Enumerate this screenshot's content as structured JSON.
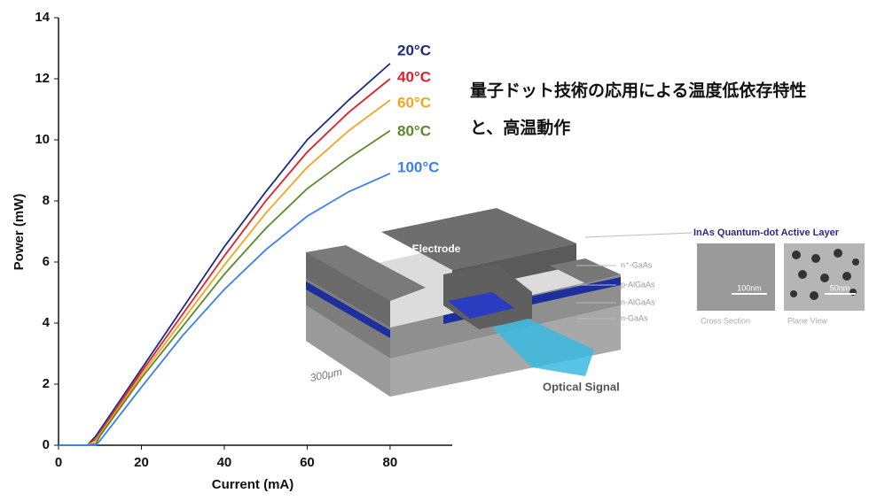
{
  "chart_data": {
    "type": "line",
    "x_label": "Current (mA)",
    "y_label": "Power (mW)",
    "x": [
      0,
      7,
      9,
      10,
      20,
      30,
      40,
      50,
      60,
      70,
      80
    ],
    "series": [
      {
        "name": "20°C",
        "color": "#1c2a80",
        "values": [
          0,
          0,
          0.3,
          0.5,
          2.5,
          4.5,
          6.5,
          8.3,
          10.0,
          11.3,
          12.5
        ]
      },
      {
        "name": "40°C",
        "color": "#e61e2a",
        "values": [
          0,
          0,
          0.2,
          0.4,
          2.4,
          4.3,
          6.2,
          8.0,
          9.6,
          10.9,
          12.0
        ]
      },
      {
        "name": "60°C",
        "color": "#f4a422",
        "values": [
          0,
          0,
          0.15,
          0.35,
          2.3,
          4.1,
          5.9,
          7.6,
          9.1,
          10.3,
          11.3
        ]
      },
      {
        "name": "80°C",
        "color": "#5a8a2a",
        "values": [
          0,
          0,
          0.05,
          0.3,
          2.2,
          3.9,
          5.6,
          7.1,
          8.4,
          9.4,
          10.3
        ]
      },
      {
        "name": "100°C",
        "color": "#3a80f0",
        "values": [
          0,
          0,
          0,
          0.15,
          1.9,
          3.6,
          5.1,
          6.4,
          7.5,
          8.3,
          8.9
        ]
      }
    ],
    "xlim": [
      0,
      95
    ],
    "xticks": [
      0,
      20,
      40,
      60,
      80
    ],
    "ylim": [
      0,
      14
    ],
    "yticks": [
      0,
      2,
      4,
      6,
      8,
      10,
      12,
      14
    ],
    "grid": false,
    "annotations": [
      "量子ドット技術の応用による温度低依存特性",
      "と、高温動作"
    ]
  },
  "illustration": {
    "electrode": "Electrode",
    "layers": [
      "n⁺-GaAs",
      "p-AlGaAs",
      "n-AlGaAs",
      "n-GaAs"
    ],
    "optical_signal": "Optical Signal",
    "width": "300μm",
    "inset_title": "InAs Quantum-dot Active Layer",
    "scale_bars": [
      "100nm",
      "50nm"
    ],
    "inset_captions": [
      "Cross Section",
      "Plane View"
    ]
  }
}
